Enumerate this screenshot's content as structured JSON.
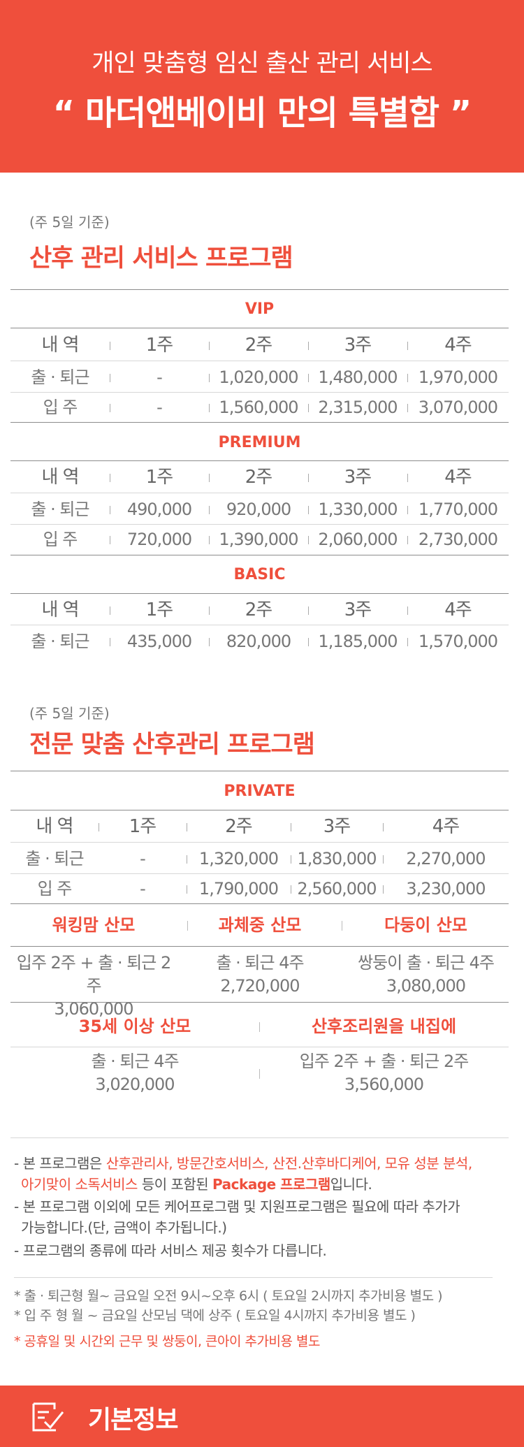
{
  "header": {
    "subtitle": "개인 맞춤형 임신 출산 관리 서비스",
    "title": "“ 마더앤베이비 만의 특별함 ”"
  },
  "section1": {
    "note": "(주 5일 기준)",
    "title": "산후 관리 서비스 프로그램",
    "headers": [
      "내 역",
      "1주",
      "2주",
      "3주",
      "4주"
    ],
    "tiers": [
      {
        "name": "VIP",
        "rows": [
          [
            "출 · 퇴근",
            "-",
            "1,020,000",
            "1,480,000",
            "1,970,000"
          ],
          [
            "입 주",
            "-",
            "1,560,000",
            "2,315,000",
            "3,070,000"
          ]
        ]
      },
      {
        "name": "PREMIUM",
        "rows": [
          [
            "출 · 퇴근",
            "490,000",
            "920,000",
            "1,330,000",
            "1,770,000"
          ],
          [
            "입 주",
            "720,000",
            "1,390,000",
            "2,060,000",
            "2,730,000"
          ]
        ]
      },
      {
        "name": "BASIC",
        "rows": [
          [
            "출 · 퇴근",
            "435,000",
            "820,000",
            "1,185,000",
            "1,570,000"
          ]
        ]
      }
    ]
  },
  "section2": {
    "note": "(주 5일 기준)",
    "title": "전문 맞춤 산후관리 프로그램",
    "tier": "PRIVATE",
    "headers": [
      "내 역",
      "1주",
      "2주",
      "3주",
      "4주"
    ],
    "rows": [
      [
        "출 · 퇴근",
        "-",
        "1,320,000",
        "1,830,000",
        "2,270,000"
      ],
      [
        "입 주",
        "-",
        "1,790,000",
        "2,560,000",
        "3,230,000"
      ]
    ],
    "packages_row1": [
      {
        "title": "워킹맘 산모",
        "desc": "입주 2주 + 출 · 퇴근 2주",
        "price": "3,060,000"
      },
      {
        "title": "과체중 산모",
        "desc": "출 · 퇴근 4주",
        "price": "2,720,000"
      },
      {
        "title": "다둥이 산모",
        "desc": "쌍둥이 출 · 퇴근 4주",
        "price": "3,080,000"
      }
    ],
    "packages_row2": [
      {
        "title": "35세 이상 산모",
        "desc": "출 · 퇴근 4주",
        "price": "3,020,000"
      },
      {
        "title": "산후조리원을 내집에",
        "desc": "입주 2주 + 출 · 퇴근 2주",
        "price": "3,560,000"
      }
    ]
  },
  "notes": {
    "l1_pre": "- 본 프로그램은 ",
    "l1_hl": "산후관리사, 방문간호서비스, 산전.산후바디케어, 모유 성분 분석,",
    "l2_hl": "아기맞이 소독서비스",
    "l2_mid": " 등이 포함된 ",
    "l2_bold": "Package 프로그램",
    "l2_post": "입니다.",
    "l3": "- 본 프로그램 이외에 모든 케어프로그램 및 지원프로그램은 필요에 따라 추가가",
    "l4": "  가능합니다.(단, 금액이 추가됩니다.)",
    "l5": "- 프로그램의 종류에 따라 서비스 제공 횟수가 다릅니다.",
    "s1": "* 출 · 퇴근형  월~ 금요일 오전 9시~오후 6시 ( 토요일 2시까지 추가비용 별도 )",
    "s2": "* 입   주   형  월 ~ 금요일 산모님 댁에 상주 ( 토요일 4시까지 추가비용 별도 )",
    "s3": "* 공휴일 및 시간외 근무 및 쌍둥이, 큰아이 추가비용 별도"
  },
  "footer": {
    "label": "기본정보",
    "icon": "document-check-icon"
  }
}
